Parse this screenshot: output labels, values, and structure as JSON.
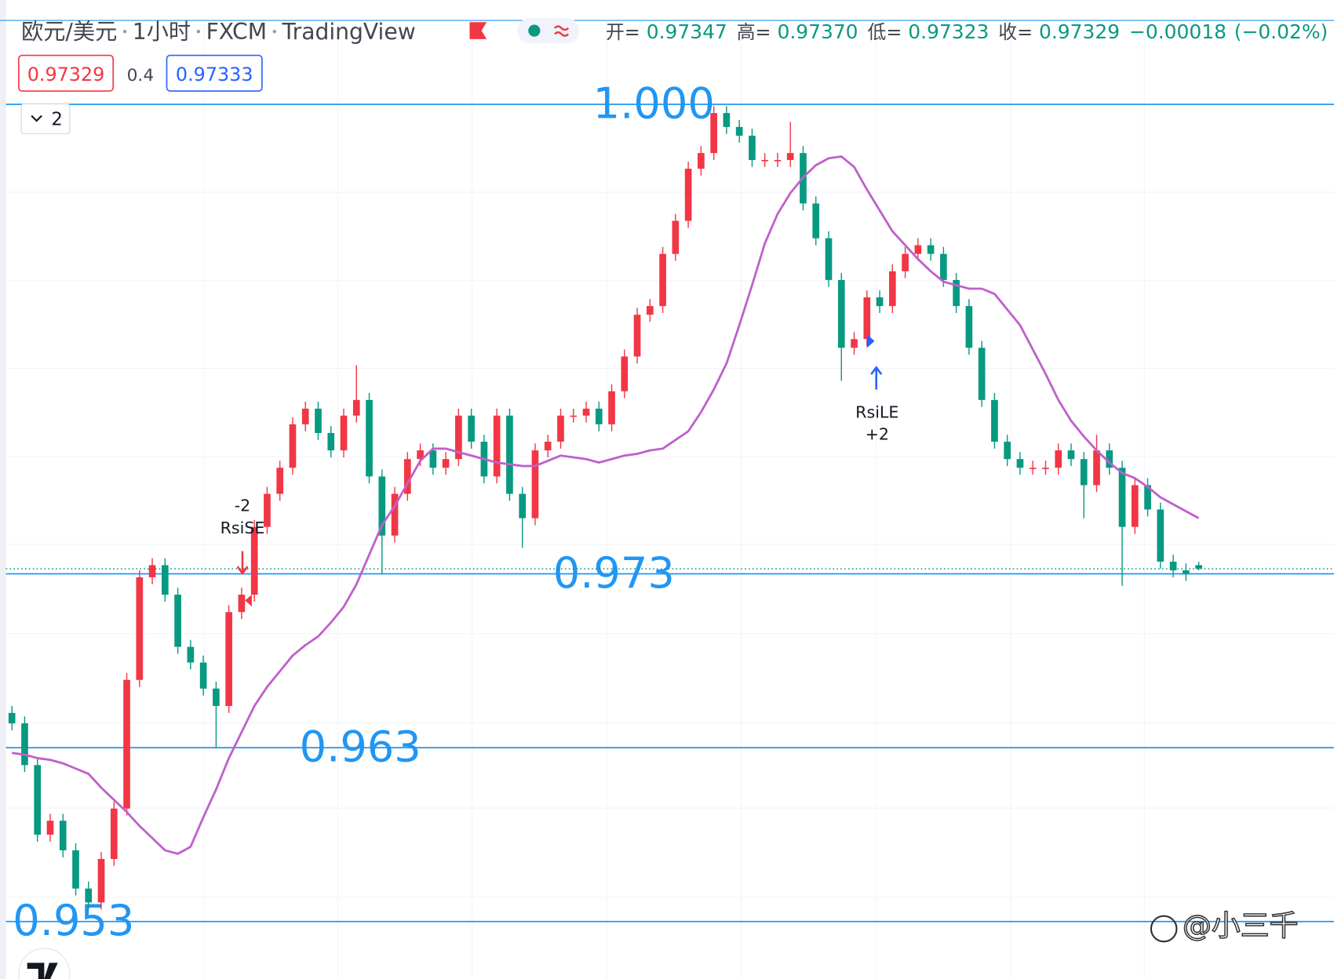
{
  "header": {
    "symbol": "欧元/美元",
    "interval": "1小时",
    "exchange": "FXCM",
    "source": "TradingView",
    "ohlc": [
      {
        "name": "开=",
        "value": 0.97347
      },
      {
        "name": "高=",
        "value": 0.9737,
        "label": "0.97370"
      },
      {
        "name": "低=",
        "value": 0.97323
      },
      {
        "name": "收=",
        "value": 0.97329
      }
    ],
    "change": {
      "value": -0.00018,
      "label": "−0.00018"
    },
    "change_pct": {
      "value": -0.02,
      "label": "(−0.02%)"
    },
    "bid": 0.97329,
    "spread": 0.4,
    "ask": 0.97333,
    "indicator_count": 2
  },
  "chart_data": {
    "type": "candlestick",
    "ylim": [
      0.9497,
      1.006
    ],
    "up_color": "#f23645",
    "down_color": "#089981",
    "level_color": "#2196f3",
    "open": [
      0.965,
      0.9644,
      0.962,
      0.958,
      0.9588,
      0.9571,
      0.9549,
      0.9541,
      0.9566,
      0.9595,
      0.9669,
      0.9728,
      0.9735,
      0.9718,
      0.9688,
      0.9679,
      0.9664,
      0.9654,
      0.9708,
      0.9718,
      0.9757,
      0.9776,
      0.9791,
      0.9816,
      0.9825,
      0.9811,
      0.9801,
      0.9821,
      0.983,
      0.9786,
      0.9752,
      0.9776,
      0.9796,
      0.9801,
      0.9791,
      0.9796,
      0.9821,
      0.9806,
      0.9786,
      0.9821,
      0.9776,
      0.9762,
      0.9801,
      0.9806,
      0.9821,
      0.9821,
      0.9825,
      0.9816,
      0.9835,
      0.9855,
      0.9879,
      0.9884,
      0.9914,
      0.9933,
      0.9963,
      0.9972,
      0.9995,
      0.9987,
      0.9982,
      0.9968,
      0.9968,
      0.9968,
      0.9972,
      0.9943,
      0.9923,
      0.9899,
      0.986,
      0.9865,
      0.9889,
      0.9884,
      0.9904,
      0.9914,
      0.9919,
      0.9914,
      0.9899,
      0.9884,
      0.986,
      0.983,
      0.9806,
      0.9796,
      0.9791,
      0.9791,
      0.9791,
      0.9801,
      0.9796,
      0.9781,
      0.9801,
      0.9791,
      0.9757,
      0.9781,
      0.9767,
      0.9737,
      0.9732,
      0.9735
    ],
    "high": [
      0.9654,
      0.9648,
      0.9624,
      0.9592,
      0.9592,
      0.9575,
      0.9553,
      0.957,
      0.9599,
      0.9673,
      0.9732,
      0.9739,
      0.9739,
      0.9722,
      0.9692,
      0.9683,
      0.9668,
      0.9712,
      0.9722,
      0.9761,
      0.978,
      0.9795,
      0.982,
      0.9829,
      0.9829,
      0.9815,
      0.9825,
      0.985,
      0.9834,
      0.979,
      0.978,
      0.98,
      0.9805,
      0.9805,
      0.98,
      0.9825,
      0.9825,
      0.981,
      0.9825,
      0.9825,
      0.978,
      0.9805,
      0.981,
      0.9825,
      0.9825,
      0.9829,
      0.9829,
      0.9839,
      0.9859,
      0.9883,
      0.9888,
      0.9918,
      0.9937,
      0.9967,
      0.9976,
      0.9999,
      0.9999,
      0.9991,
      0.9986,
      0.9972,
      0.9972,
      0.999,
      0.9976,
      0.9947,
      0.9927,
      0.9903,
      0.9869,
      0.9893,
      0.9893,
      0.9908,
      0.9918,
      0.9923,
      0.9923,
      0.9918,
      0.9903,
      0.9888,
      0.9864,
      0.9834,
      0.981,
      0.98,
      0.9795,
      0.9795,
      0.9805,
      0.9805,
      0.98,
      0.981,
      0.9805,
      0.9795,
      0.9785,
      0.9785,
      0.9771,
      0.9741,
      0.9736,
      0.9737
    ],
    "low": [
      0.964,
      0.9616,
      0.9576,
      0.9576,
      0.9567,
      0.9545,
      0.9537,
      0.9537,
      0.9562,
      0.9591,
      0.9665,
      0.9724,
      0.9714,
      0.9684,
      0.9675,
      0.966,
      0.963,
      0.965,
      0.9704,
      0.9714,
      0.9753,
      0.9772,
      0.9787,
      0.9812,
      0.9807,
      0.9797,
      0.9797,
      0.9817,
      0.9782,
      0.973,
      0.9748,
      0.9772,
      0.9792,
      0.9787,
      0.9787,
      0.9792,
      0.9802,
      0.9782,
      0.9782,
      0.9772,
      0.9745,
      0.9758,
      0.9797,
      0.9802,
      0.9817,
      0.9817,
      0.9812,
      0.9812,
      0.9831,
      0.9851,
      0.9875,
      0.988,
      0.991,
      0.9929,
      0.9959,
      0.9968,
      0.9983,
      0.9978,
      0.9964,
      0.9964,
      0.9964,
      0.9964,
      0.9939,
      0.9919,
      0.9895,
      0.9841,
      0.9856,
      0.9861,
      0.988,
      0.988,
      0.99,
      0.991,
      0.991,
      0.9895,
      0.988,
      0.9856,
      0.9826,
      0.9802,
      0.9792,
      0.9787,
      0.9787,
      0.9787,
      0.9787,
      0.9792,
      0.9762,
      0.9777,
      0.9787,
      0.9723,
      0.9753,
      0.9763,
      0.9733,
      0.9728,
      0.9726,
      0.9732
    ],
    "close": [
      0.9644,
      0.962,
      0.958,
      0.9588,
      0.9571,
      0.9549,
      0.9541,
      0.9566,
      0.9595,
      0.9669,
      0.9728,
      0.9735,
      0.9718,
      0.9688,
      0.9679,
      0.9664,
      0.9654,
      0.9708,
      0.9718,
      0.9757,
      0.9776,
      0.9791,
      0.9816,
      0.9825,
      0.9811,
      0.9801,
      0.9821,
      0.983,
      0.9786,
      0.9752,
      0.9776,
      0.9796,
      0.9801,
      0.9791,
      0.9796,
      0.9821,
      0.9806,
      0.9786,
      0.9821,
      0.9776,
      0.9762,
      0.9801,
      0.9806,
      0.9821,
      0.9821,
      0.9825,
      0.9816,
      0.9835,
      0.9855,
      0.9879,
      0.9884,
      0.9914,
      0.9933,
      0.9963,
      0.9972,
      0.9995,
      0.9987,
      0.9982,
      0.9968,
      0.9968,
      0.9968,
      0.9972,
      0.9943,
      0.9923,
      0.9899,
      0.986,
      0.9865,
      0.9889,
      0.9884,
      0.9904,
      0.9914,
      0.9919,
      0.9914,
      0.9899,
      0.9884,
      0.986,
      0.983,
      0.9806,
      0.9796,
      0.9791,
      0.9791,
      0.9791,
      0.9801,
      0.9796,
      0.9781,
      0.9801,
      0.9791,
      0.9757,
      0.9781,
      0.9767,
      0.9737,
      0.9732,
      0.973,
      0.9733
    ],
    "ma": {
      "color": "#bf60cc",
      "values": [
        0.9627,
        0.9626,
        0.9624,
        0.9623,
        0.9621,
        0.9618,
        0.9615,
        0.9607,
        0.96,
        0.9593,
        0.9585,
        0.9578,
        0.9571,
        0.9569,
        0.9573,
        0.959,
        0.9606,
        0.9624,
        0.9639,
        0.9654,
        0.9665,
        0.9674,
        0.9683,
        0.9689,
        0.9694,
        0.9702,
        0.9711,
        0.9724,
        0.9741,
        0.9758,
        0.9769,
        0.9782,
        0.9795,
        0.9802,
        0.9802,
        0.98,
        0.9798,
        0.9796,
        0.9794,
        0.9793,
        0.9792,
        0.9792,
        0.9795,
        0.9798,
        0.9797,
        0.9796,
        0.9794,
        0.9796,
        0.9798,
        0.9799,
        0.9801,
        0.9802,
        0.9807,
        0.9812,
        0.9823,
        0.9836,
        0.9851,
        0.9873,
        0.9896,
        0.992,
        0.9937,
        0.9949,
        0.9958,
        0.9965,
        0.9969,
        0.997,
        0.9964,
        0.9951,
        0.9939,
        0.9927,
        0.9919,
        0.9911,
        0.9904,
        0.9898,
        0.9896,
        0.9894,
        0.9894,
        0.9891,
        0.9882,
        0.9873,
        0.9859,
        0.9845,
        0.983,
        0.9818,
        0.9809,
        0.9801,
        0.9794,
        0.9788,
        0.9785,
        0.978,
        0.9774,
        0.977,
        0.9766,
        0.9762
      ]
    },
    "levels": [
      {
        "value": 1,
        "label": "1.000"
      },
      0.973,
      0.963,
      0.953
    ],
    "signals": [
      {
        "name": "RsiSE",
        "qty": "-2"
      },
      {
        "name": "RsiLE",
        "qty": "+2"
      }
    ],
    "watermark": "@小三千"
  }
}
